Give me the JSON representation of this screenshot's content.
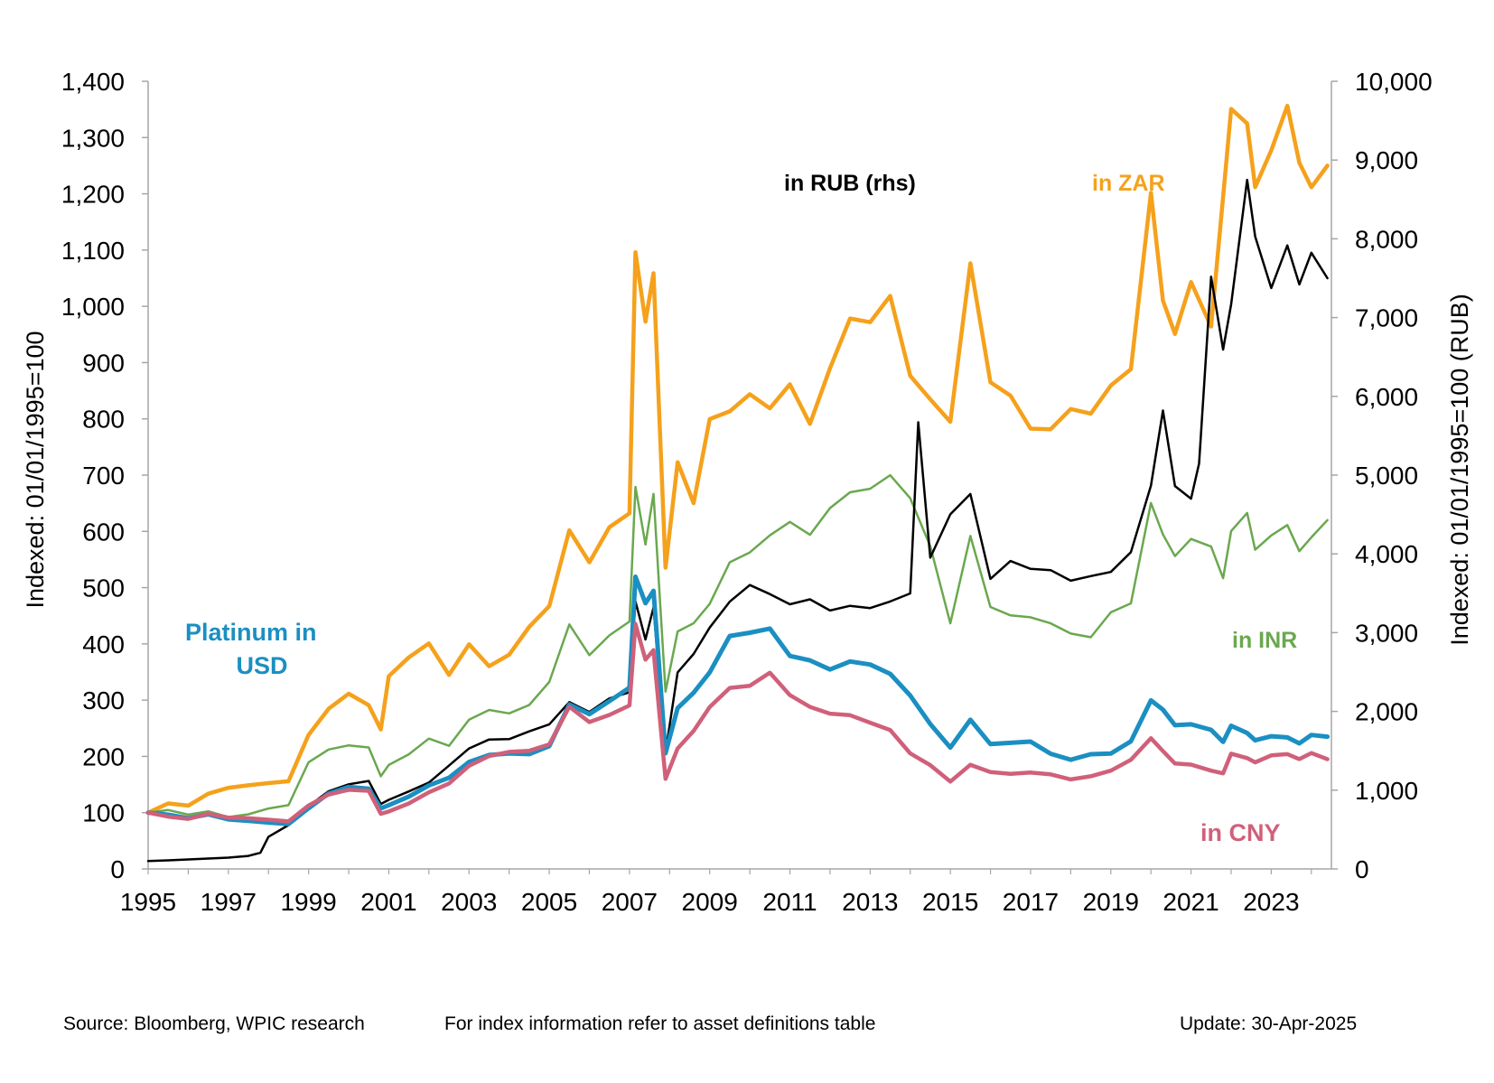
{
  "chart_data": {
    "type": "line",
    "title": "",
    "y_left_label": "Indexed: 01/01/1995=100",
    "y_right_label": "Indexed: 01/01/1995=100 (RUB)",
    "x_ticks": [
      "1995",
      "1997",
      "1999",
      "2001",
      "2003",
      "2005",
      "2007",
      "2009",
      "2011",
      "2013",
      "2015",
      "2017",
      "2019",
      "2021",
      "2023"
    ],
    "y_left_ticks": [
      "0",
      "100",
      "200",
      "300",
      "400",
      "500",
      "600",
      "700",
      "800",
      "900",
      "1,000",
      "1,100",
      "1,200",
      "1,300",
      "1,400"
    ],
    "y_right_ticks": [
      "0",
      "1,000",
      "2,000",
      "3,000",
      "4,000",
      "5,000",
      "6,000",
      "7,000",
      "8,000",
      "9,000",
      "10,000"
    ],
    "ylim_left": [
      0,
      1400
    ],
    "ylim_right": [
      0,
      10000
    ],
    "xlim": [
      1995,
      2024.5
    ],
    "grid": false,
    "series": [
      {
        "name": "in ZAR",
        "axis": "left",
        "color": "#F5A11C",
        "width": 4.5,
        "x": [
          1995,
          1995.5,
          1996,
          1996.5,
          1997,
          1997.5,
          1998,
          1998.5,
          1999,
          1999.5,
          2000,
          2000.5,
          2000.8,
          2001,
          2001.5,
          2002,
          2002.5,
          2003,
          2003.5,
          2004,
          2004.5,
          2005,
          2005.5,
          2006,
          2006.5,
          2007,
          2007.15,
          2007.4,
          2007.6,
          2007.9,
          2008.2,
          2008.6,
          2009,
          2009.5,
          2010,
          2010.5,
          2011,
          2011.5,
          2012,
          2012.5,
          2013,
          2013.5,
          2014,
          2014.5,
          2015,
          2015.5,
          2016,
          2016.5,
          2017,
          2017.5,
          2018,
          2018.5,
          2019,
          2019.5,
          2020,
          2020.3,
          2020.6,
          2021,
          2021.5,
          2021.8,
          2022,
          2022.4,
          2022.6,
          2023,
          2023.4,
          2023.7,
          2024,
          2024.4
        ],
        "values": [
          100,
          115,
          110,
          130,
          140,
          145,
          150,
          155,
          240,
          290,
          320,
          300,
          255,
          350,
          380,
          400,
          340,
          390,
          350,
          370,
          420,
          460,
          600,
          550,
          620,
          650,
          1130,
          1000,
          1080,
          540,
          720,
          640,
          780,
          790,
          820,
          800,
          850,
          790,
          900,
          1000,
          1000,
          1050,
          900,
          850,
          800,
          1070,
          850,
          820,
          760,
          760,
          800,
          800,
          860,
          900,
          1230,
          1040,
          980,
          1070,
          980,
          1200,
          1340,
          1300,
          1180,
          1240,
          1320,
          1230,
          1200,
          1250
        ]
      },
      {
        "name": "in INR",
        "axis": "left",
        "color": "#6AA84F",
        "width": 2.5,
        "x": [
          1995,
          1995.5,
          1996,
          1996.5,
          1997,
          1997.5,
          1998,
          1998.5,
          1999,
          1999.5,
          2000,
          2000.5,
          2000.8,
          2001,
          2001.5,
          2002,
          2002.5,
          2003,
          2003.5,
          2004,
          2004.5,
          2005,
          2005.5,
          2006,
          2006.5,
          2007,
          2007.15,
          2007.4,
          2007.6,
          2007.9,
          2008.2,
          2008.6,
          2009,
          2009.5,
          2010,
          2010.5,
          2011,
          2011.5,
          2012,
          2012.5,
          2013,
          2013.5,
          2014,
          2014.5,
          2015,
          2015.5,
          2016,
          2016.5,
          2017,
          2017.5,
          2018,
          2018.5,
          2019,
          2019.5,
          2020,
          2020.3,
          2020.6,
          2021,
          2021.5,
          2021.8,
          2022,
          2022.4,
          2022.6,
          2023,
          2023.4,
          2023.7,
          2024,
          2024.4
        ],
        "values": [
          100,
          105,
          98,
          105,
          95,
          100,
          110,
          115,
          190,
          210,
          215,
          210,
          160,
          180,
          200,
          230,
          220,
          270,
          290,
          285,
          300,
          340,
          440,
          380,
          410,
          430,
          660,
          560,
          650,
          310,
          420,
          440,
          480,
          560,
          580,
          610,
          630,
          600,
          640,
          660,
          660,
          680,
          640,
          560,
          430,
          590,
          470,
          460,
          460,
          450,
          430,
          420,
          460,
          470,
          640,
          580,
          540,
          570,
          560,
          510,
          600,
          640,
          580,
          610,
          630,
          580,
          600,
          620
        ]
      },
      {
        "name": "in RUB (rhs)",
        "axis": "right",
        "color": "#000000",
        "width": 2.5,
        "x": [
          1995,
          1995.5,
          1996,
          1996.5,
          1997,
          1997.5,
          1997.8,
          1998,
          1998.5,
          1999,
          1999.5,
          2000,
          2000.5,
          2000.8,
          2001,
          2001.5,
          2002,
          2002.5,
          2003,
          2003.5,
          2004,
          2004.5,
          2005,
          2005.5,
          2006,
          2006.5,
          2007,
          2007.15,
          2007.4,
          2007.6,
          2007.9,
          2008.2,
          2008.6,
          2009,
          2009.5,
          2010,
          2010.5,
          2011,
          2011.5,
          2012,
          2012.5,
          2013,
          2013.5,
          2014,
          2014.2,
          2014.5,
          2015,
          2015.5,
          2016,
          2016.5,
          2017,
          2017.5,
          2018,
          2018.5,
          2019,
          2019.5,
          2020,
          2020.3,
          2020.6,
          2021,
          2021.2,
          2021.5,
          2021.8,
          2022,
          2022.4,
          2022.6,
          2023,
          2023.4,
          2023.7,
          2024,
          2024.4
        ],
        "values": [
          100,
          110,
          120,
          130,
          140,
          160,
          200,
          400,
          550,
          800,
          1000,
          1100,
          1150,
          850,
          900,
          1000,
          1100,
          1300,
          1500,
          1600,
          1600,
          1700,
          1800,
          2100,
          2000,
          2200,
          2300,
          3500,
          3000,
          3400,
          1500,
          2500,
          2700,
          3000,
          3300,
          3500,
          3400,
          3300,
          3400,
          3300,
          3400,
          3400,
          3500,
          3600,
          5800,
          4000,
          4500,
          4700,
          3600,
          3800,
          3700,
          3700,
          3600,
          3700,
          3800,
          4100,
          5000,
          6000,
          5000,
          4800,
          5200,
          7500,
          6500,
          7000,
          8500,
          7800,
          7200,
          7800,
          7400,
          7900,
          7500
        ]
      },
      {
        "name": "Platinum in USD",
        "axis": "left",
        "color": "#1B8FC2",
        "width": 5,
        "x": [
          1995,
          1995.5,
          1996,
          1996.5,
          1997,
          1997.5,
          1998,
          1998.5,
          1999,
          1999.5,
          2000,
          2000.5,
          2000.8,
          2001,
          2001.5,
          2002,
          2002.5,
          2003,
          2003.5,
          2004,
          2004.5,
          2005,
          2005.5,
          2006,
          2006.5,
          2007,
          2007.15,
          2007.4,
          2007.6,
          2007.9,
          2008.2,
          2008.6,
          2009,
          2009.5,
          2010,
          2010.5,
          2011,
          2011.5,
          2012,
          2012.5,
          2013,
          2013.5,
          2014,
          2014.5,
          2015,
          2015.5,
          2016,
          2016.5,
          2017,
          2017.5,
          2018,
          2018.5,
          2019,
          2019.5,
          2020,
          2020.3,
          2020.6,
          2021,
          2021.5,
          2021.8,
          2022,
          2022.4,
          2022.6,
          2023,
          2023.4,
          2023.7,
          2024,
          2024.4
        ],
        "values": [
          100,
          95,
          90,
          98,
          90,
          88,
          85,
          82,
          110,
          135,
          145,
          140,
          105,
          110,
          125,
          145,
          160,
          190,
          205,
          210,
          210,
          225,
          300,
          280,
          300,
          320,
          510,
          460,
          480,
          200,
          280,
          310,
          350,
          420,
          430,
          440,
          390,
          380,
          360,
          370,
          360,
          340,
          300,
          250,
          210,
          260,
          220,
          225,
          230,
          210,
          200,
          210,
          210,
          230,
          300,
          280,
          250,
          250,
          240,
          220,
          250,
          240,
          230,
          240,
          240,
          230,
          245,
          235
        ]
      },
      {
        "name": "in CNY",
        "axis": "left",
        "color": "#D0607A",
        "width": 4.5,
        "x": [
          1995,
          1995.5,
          1996,
          1996.5,
          1997,
          1997.5,
          1998,
          1998.5,
          1999,
          1999.5,
          2000,
          2000.5,
          2000.8,
          2001,
          2001.5,
          2002,
          2002.5,
          2003,
          2003.5,
          2004,
          2004.5,
          2005,
          2005.5,
          2006,
          2006.5,
          2007,
          2007.15,
          2007.4,
          2007.6,
          2007.9,
          2008.2,
          2008.6,
          2009,
          2009.5,
          2010,
          2010.5,
          2011,
          2011.5,
          2012,
          2012.5,
          2013,
          2013.5,
          2014,
          2014.5,
          2015,
          2015.5,
          2016,
          2016.5,
          2017,
          2017.5,
          2018,
          2018.5,
          2019,
          2019.5,
          2020,
          2020.3,
          2020.6,
          2021,
          2021.5,
          2021.8,
          2022,
          2022.4,
          2022.6,
          2023,
          2023.4,
          2023.7,
          2024,
          2024.4
        ],
        "values": [
          100,
          95,
          90,
          98,
          90,
          88,
          85,
          82,
          110,
          130,
          140,
          140,
          100,
          105,
          120,
          140,
          155,
          185,
          200,
          205,
          205,
          215,
          280,
          255,
          270,
          290,
          440,
          380,
          400,
          165,
          220,
          250,
          290,
          320,
          320,
          340,
          300,
          280,
          270,
          270,
          260,
          250,
          210,
          190,
          160,
          190,
          175,
          170,
          170,
          165,
          155,
          160,
          170,
          190,
          230,
          210,
          190,
          190,
          180,
          175,
          210,
          200,
          190,
          200,
          200,
          190,
          200,
          195
        ]
      }
    ],
    "annotations": [
      {
        "text": "in RUB (rhs)",
        "color": "#000000"
      },
      {
        "text": "in ZAR",
        "color": "#F5A11C"
      },
      {
        "text": "Platinum in",
        "color": "#1B8FC2"
      },
      {
        "text": "USD",
        "color": "#1B8FC2"
      },
      {
        "text": "in INR",
        "color": "#6AA84F"
      },
      {
        "text": "in CNY",
        "color": "#D0607A"
      }
    ]
  },
  "footer": {
    "source": "Source: Bloomberg, WPIC research",
    "index_note": "For index information refer to asset definitions table",
    "update": "Update: 30-Apr-2025"
  }
}
